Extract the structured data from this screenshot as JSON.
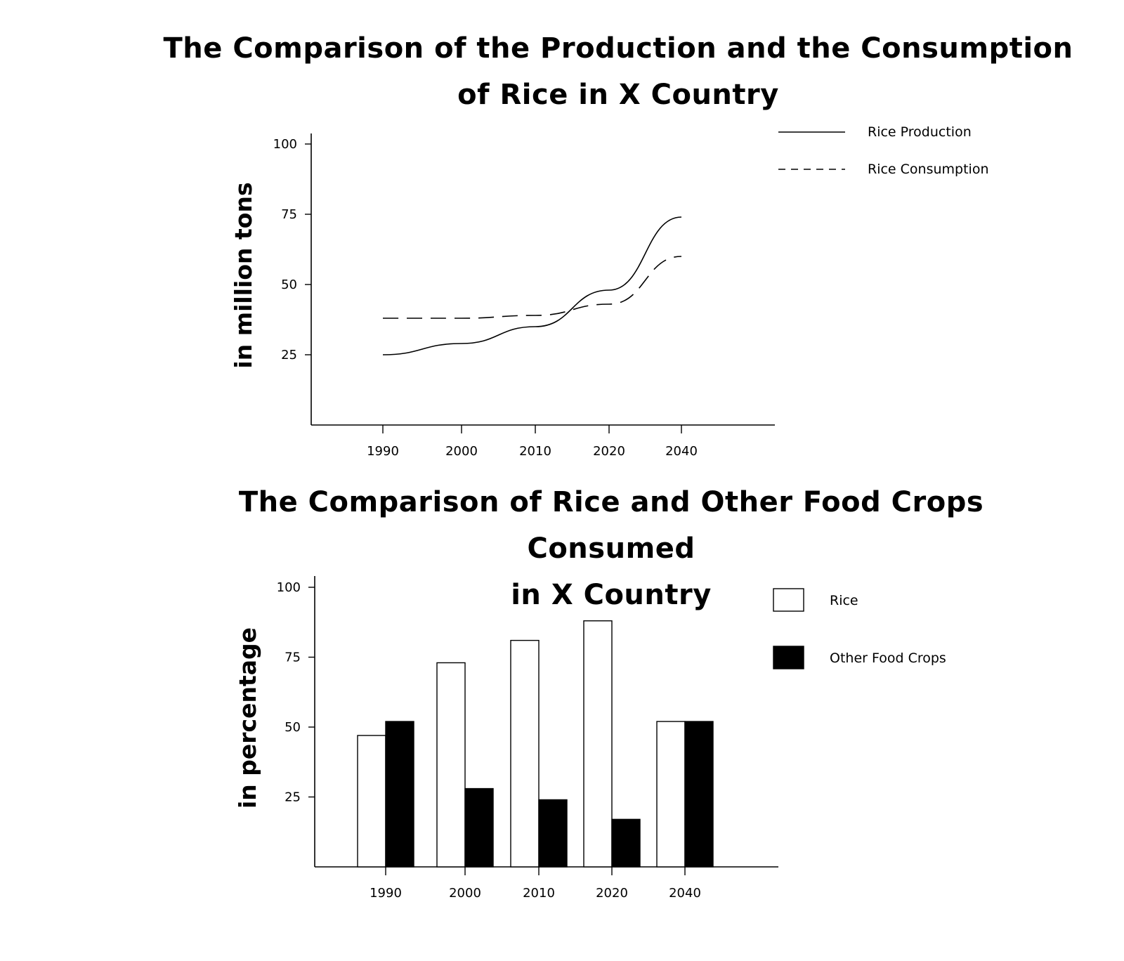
{
  "chart_data": [
    {
      "type": "line",
      "title_line1": "The Comparison of the Production and the Consumption",
      "title_line2": "of  Rice  in X Country",
      "ylabel": "in million tons",
      "xlabel": "",
      "categories": [
        "1990",
        "2000",
        "2010",
        "2020",
        "2040"
      ],
      "yticks": [
        25,
        50,
        75,
        100
      ],
      "ylim": [
        0,
        100
      ],
      "series": [
        {
          "name": "Rice Production",
          "style": "solid",
          "values": [
            25,
            29,
            35,
            48,
            74
          ]
        },
        {
          "name": "Rice Consumption",
          "style": "dashed",
          "values": [
            38,
            38,
            39,
            43,
            60
          ]
        }
      ],
      "legend_position": "top-right",
      "grid": false
    },
    {
      "type": "bar",
      "title_line1": "The Comparison of Rice and Other Food Crops Consumed",
      "title_line2": "in X Country",
      "ylabel": "in  percentage",
      "xlabel": "",
      "categories": [
        "1990",
        "2000",
        "2010",
        "2020",
        "2040"
      ],
      "yticks": [
        25,
        50,
        75,
        100
      ],
      "ylim": [
        0,
        100
      ],
      "series": [
        {
          "name": "Rice",
          "color": "#ffffff",
          "values": [
            47,
            73,
            81,
            88,
            52
          ]
        },
        {
          "name": "Other Food Crops",
          "color": "#000000",
          "values": [
            52,
            28,
            24,
            17,
            52
          ]
        }
      ],
      "legend_position": "top-right",
      "grid": false
    }
  ]
}
